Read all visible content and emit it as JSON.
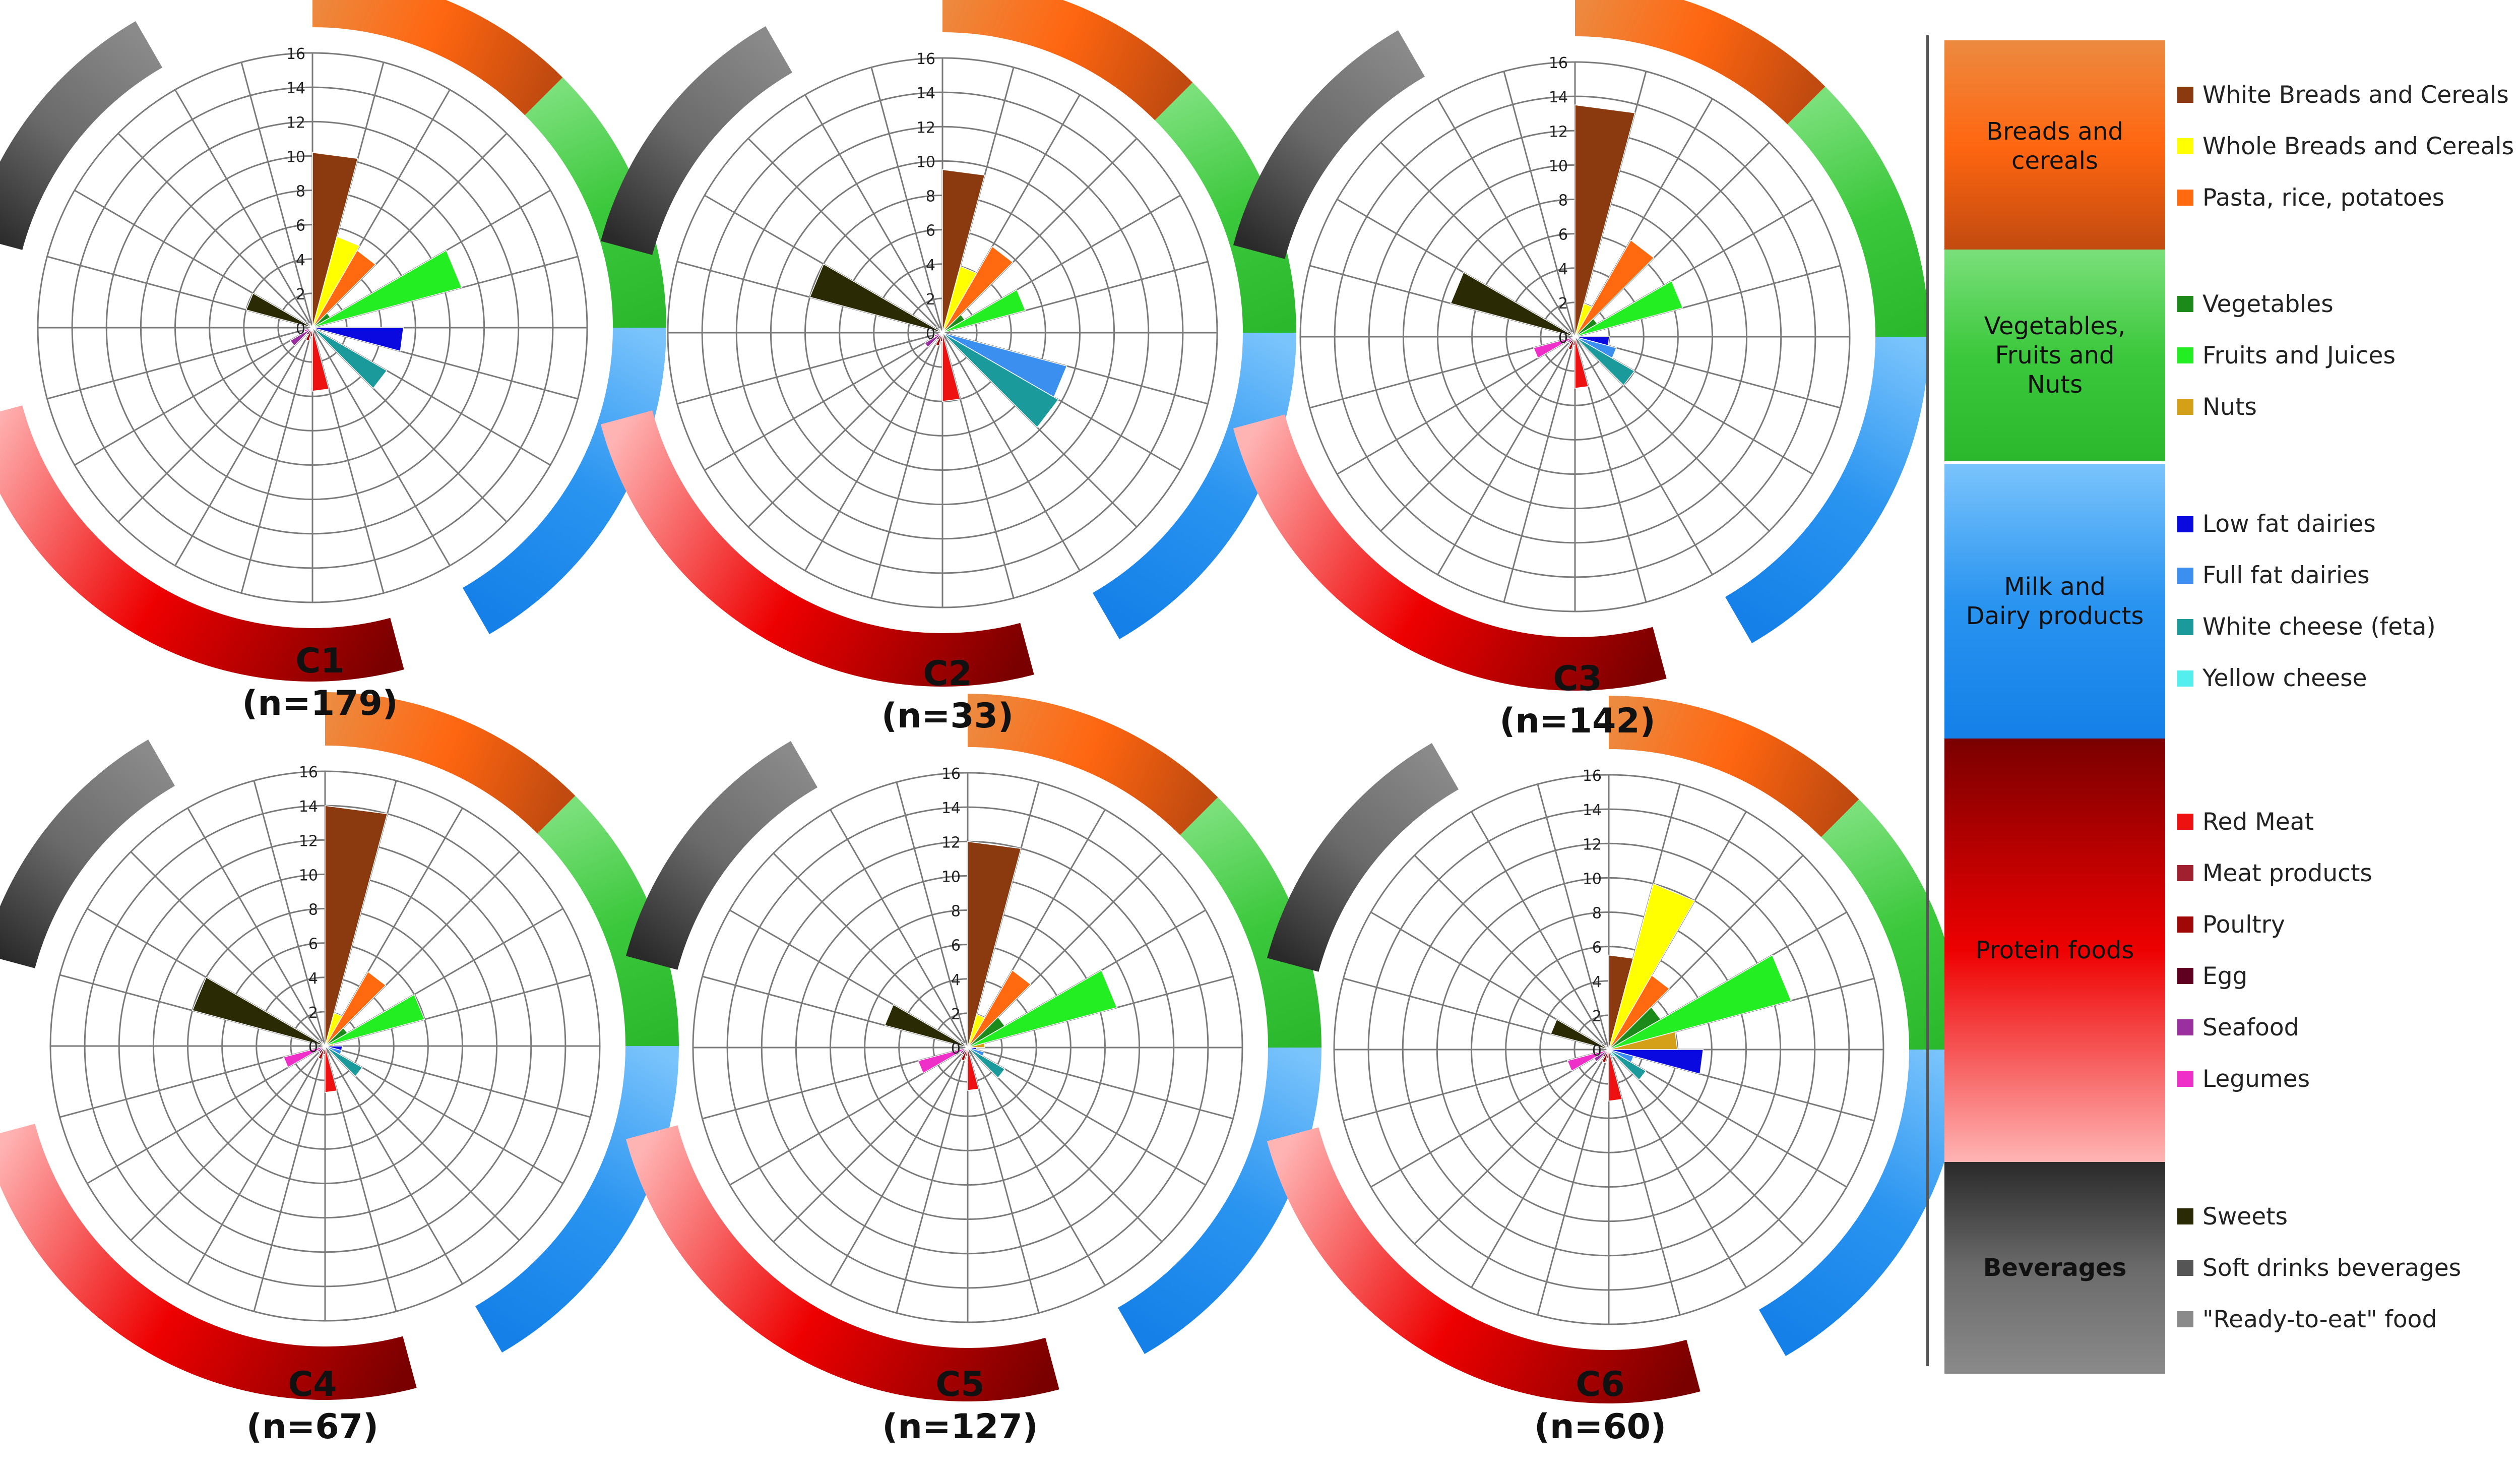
{
  "axis": {
    "max": 16,
    "ticks": [
      "0",
      "2",
      "4",
      "6",
      "8",
      "10",
      "12",
      "14",
      "16"
    ]
  },
  "colors": {
    "white_breads": "#8B3A0F",
    "whole_breads": "#FFFF00",
    "pasta": "#FF6A10",
    "vegetables": "#1B8A1B",
    "fruits": "#22EE22",
    "nuts": "#D4A017",
    "low_fat": "#0A0AE0",
    "full_fat": "#3A8FEF",
    "white_cheese": "#1A9A9A",
    "yellow_cheese": "#55EEEE",
    "red_meat": "#EE1111",
    "meat_products": "#A02030",
    "poultry": "#A00808",
    "egg": "#600020",
    "seafood": "#9A30A0",
    "legumes": "#EE30C8",
    "sweets": "#2A2A05",
    "soft_drinks": "#555555",
    "ready_to_eat": "#8A8A8A"
  },
  "legend": {
    "groups": [
      {
        "title": "Breads and\ncereals",
        "bold": false,
        "gradient": [
          "#EC8A40",
          "#FF6610",
          "#C04A10"
        ],
        "items": [
          {
            "label": "White Breads and Cereals",
            "color": "#8B3A0F"
          },
          {
            "label": "Whole Breads and Cereals",
            "color": "#FFFF00"
          },
          {
            "label": "Pasta, rice, potatoes",
            "color": "#FF6A10"
          }
        ]
      },
      {
        "title": "Vegetables,\nFruits and\nNuts",
        "bold": false,
        "gradient": [
          "#7AE07A",
          "#3CC83C",
          "#2CB82C"
        ],
        "items": [
          {
            "label": "Vegetables",
            "color": "#1B8A1B"
          },
          {
            "label": "Fruits and Juices",
            "color": "#22EE22"
          },
          {
            "label": "Nuts",
            "color": "#D4A017"
          }
        ]
      },
      {
        "title": "Milk and\nDairy products",
        "bold": false,
        "gradient": [
          "#7AC4FC",
          "#2A94F0",
          "#1480E8"
        ],
        "items": [
          {
            "label": "Low fat dairies",
            "color": "#0A0AE0"
          },
          {
            "label": "Full fat dairies",
            "color": "#3A8FEF"
          },
          {
            "label": "White cheese (feta)",
            "color": "#1A9A9A"
          },
          {
            "label": "Yellow cheese",
            "color": "#55EEEE"
          }
        ]
      },
      {
        "title": "Protein foods",
        "bold": false,
        "gradient": [
          "#7A0000",
          "#EE0000",
          "#FFB4B4"
        ],
        "items": [
          {
            "label": "Red Meat",
            "color": "#EE1111"
          },
          {
            "label": "Meat products",
            "color": "#A02030"
          },
          {
            "label": "Poultry",
            "color": "#A00808"
          },
          {
            "label": "Egg",
            "color": "#600020"
          },
          {
            "label": "Seafood",
            "color": "#9A30A0"
          },
          {
            "label": "Legumes",
            "color": "#EE30C8"
          }
        ]
      },
      {
        "title": "Beverages",
        "bold": true,
        "gradient": [
          "#2A2A2A",
          "#6A6A6A",
          "#8A8A8A"
        ],
        "items": [
          {
            "label": "Sweets",
            "color": "#2A2A05"
          },
          {
            "label": "Soft drinks beverages",
            "color": "#555555"
          },
          {
            "label": "\"Ready-to-eat\" food",
            "color": "#8A8A8A"
          }
        ]
      }
    ]
  },
  "chart_data": [
    {
      "type": "polar-bar",
      "name": "C1",
      "n_label": "(n=179)",
      "values": [
        10.2,
        5.5,
        5.2,
        1.2,
        9.0,
        0,
        5.3,
        0,
        5.0,
        0,
        3.7,
        0.5,
        0.8,
        0.5,
        1.5,
        0.5,
        4.0,
        0.5,
        0.3
      ]
    },
    {
      "type": "polar-bar",
      "name": "C2",
      "n_label": "(n=33)",
      "values": [
        9.5,
        4.0,
        5.8,
        1.5,
        5.0,
        0,
        0,
        7.5,
        7.8,
        0,
        4.0,
        0.5,
        0.8,
        0.5,
        1.2,
        0.5,
        8.0,
        0.5,
        0.3
      ]
    },
    {
      "type": "polar-bar",
      "name": "C3",
      "n_label": "(n=142)",
      "values": [
        13.5,
        2.0,
        6.5,
        1.5,
        6.5,
        0,
        2.0,
        2.5,
        4.0,
        0,
        3.0,
        0.5,
        0.8,
        0.5,
        0.5,
        2.5,
        7.5,
        0.5,
        0.3
      ]
    },
    {
      "type": "polar-bar",
      "name": "C4",
      "n_label": "(n=67)",
      "values": [
        14.0,
        2.0,
        5.0,
        1.5,
        6.0,
        0.5,
        1.0,
        1.0,
        2.5,
        0,
        2.7,
        0.5,
        0.8,
        0.5,
        0.5,
        2.5,
        8.0,
        0.5,
        0.3
      ]
    },
    {
      "type": "polar-bar",
      "name": "C5",
      "n_label": "(n=127)",
      "values": [
        12.0,
        2.0,
        5.2,
        2.5,
        9.0,
        1.0,
        0.5,
        1.0,
        2.5,
        0,
        2.5,
        0.5,
        0.8,
        0.5,
        0.5,
        3.0,
        5.0,
        0.5,
        0.3
      ]
    },
    {
      "type": "polar-bar",
      "name": "C6",
      "n_label": "(n=60)",
      "values": [
        5.5,
        10.0,
        5.0,
        3.5,
        11.0,
        4.0,
        5.5,
        1.5,
        2.5,
        0.5,
        3.0,
        0.5,
        0.8,
        0.5,
        1.0,
        2.5,
        3.5,
        0.5,
        0.3
      ]
    }
  ]
}
